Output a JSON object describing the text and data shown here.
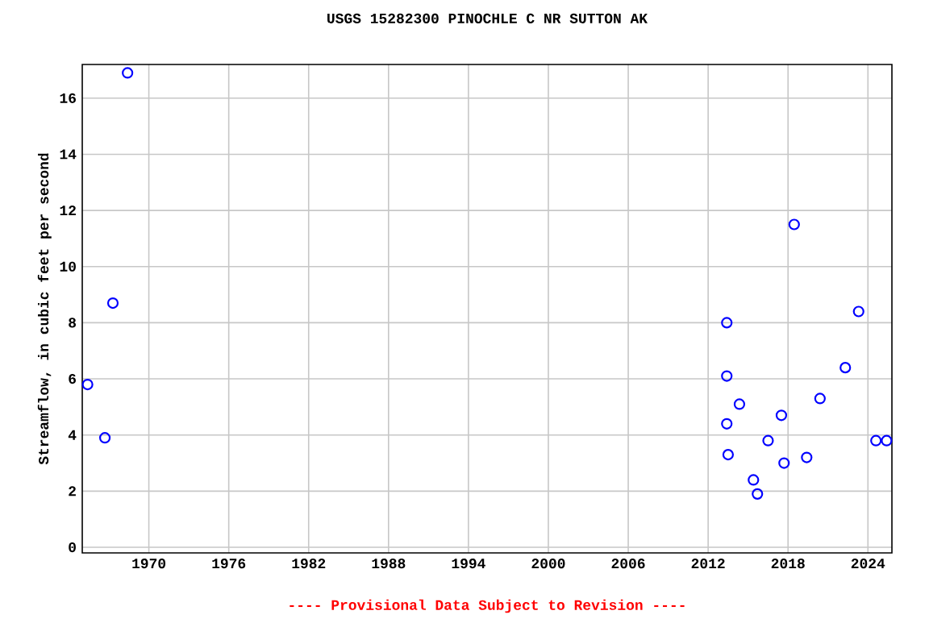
{
  "chart_data": {
    "type": "scatter",
    "title": "USGS 15282300 PINOCHLE C NR SUTTON AK",
    "ylabel": "Streamflow, in cubic feet per second",
    "annotations": [
      "---- Provisional Data Subject to Revision ----"
    ],
    "x": [
      1965.4,
      1966.7,
      1967.3,
      1968.4,
      2013.4,
      2013.4,
      2013.4,
      2013.5,
      2014.35,
      2015.4,
      2015.7,
      2016.5,
      2017.5,
      2017.7,
      2018.46,
      2019.4,
      2020.4,
      2022.3,
      2023.3,
      2024.6,
      2025.4
    ],
    "series": [
      {
        "color": "#0000ff",
        "values": [
          5.8,
          3.9,
          8.7,
          16.9,
          8.0,
          6.1,
          4.4,
          3.3,
          5.1,
          2.4,
          1.9,
          3.8,
          4.7,
          3.0,
          11.5,
          3.2,
          5.3,
          6.4,
          8.4,
          3.8,
          3.8
        ]
      }
    ],
    "xlim": [
      1965.0,
      2025.8
    ],
    "ylim": [
      -0.2,
      17.2
    ],
    "xticks": [
      1970,
      1976,
      1982,
      1988,
      1994,
      2000,
      2006,
      2012,
      2018,
      2024
    ],
    "yticks": [
      0,
      2,
      4,
      6,
      8,
      10,
      12,
      14,
      16
    ],
    "grid": true,
    "marker": "circle"
  }
}
